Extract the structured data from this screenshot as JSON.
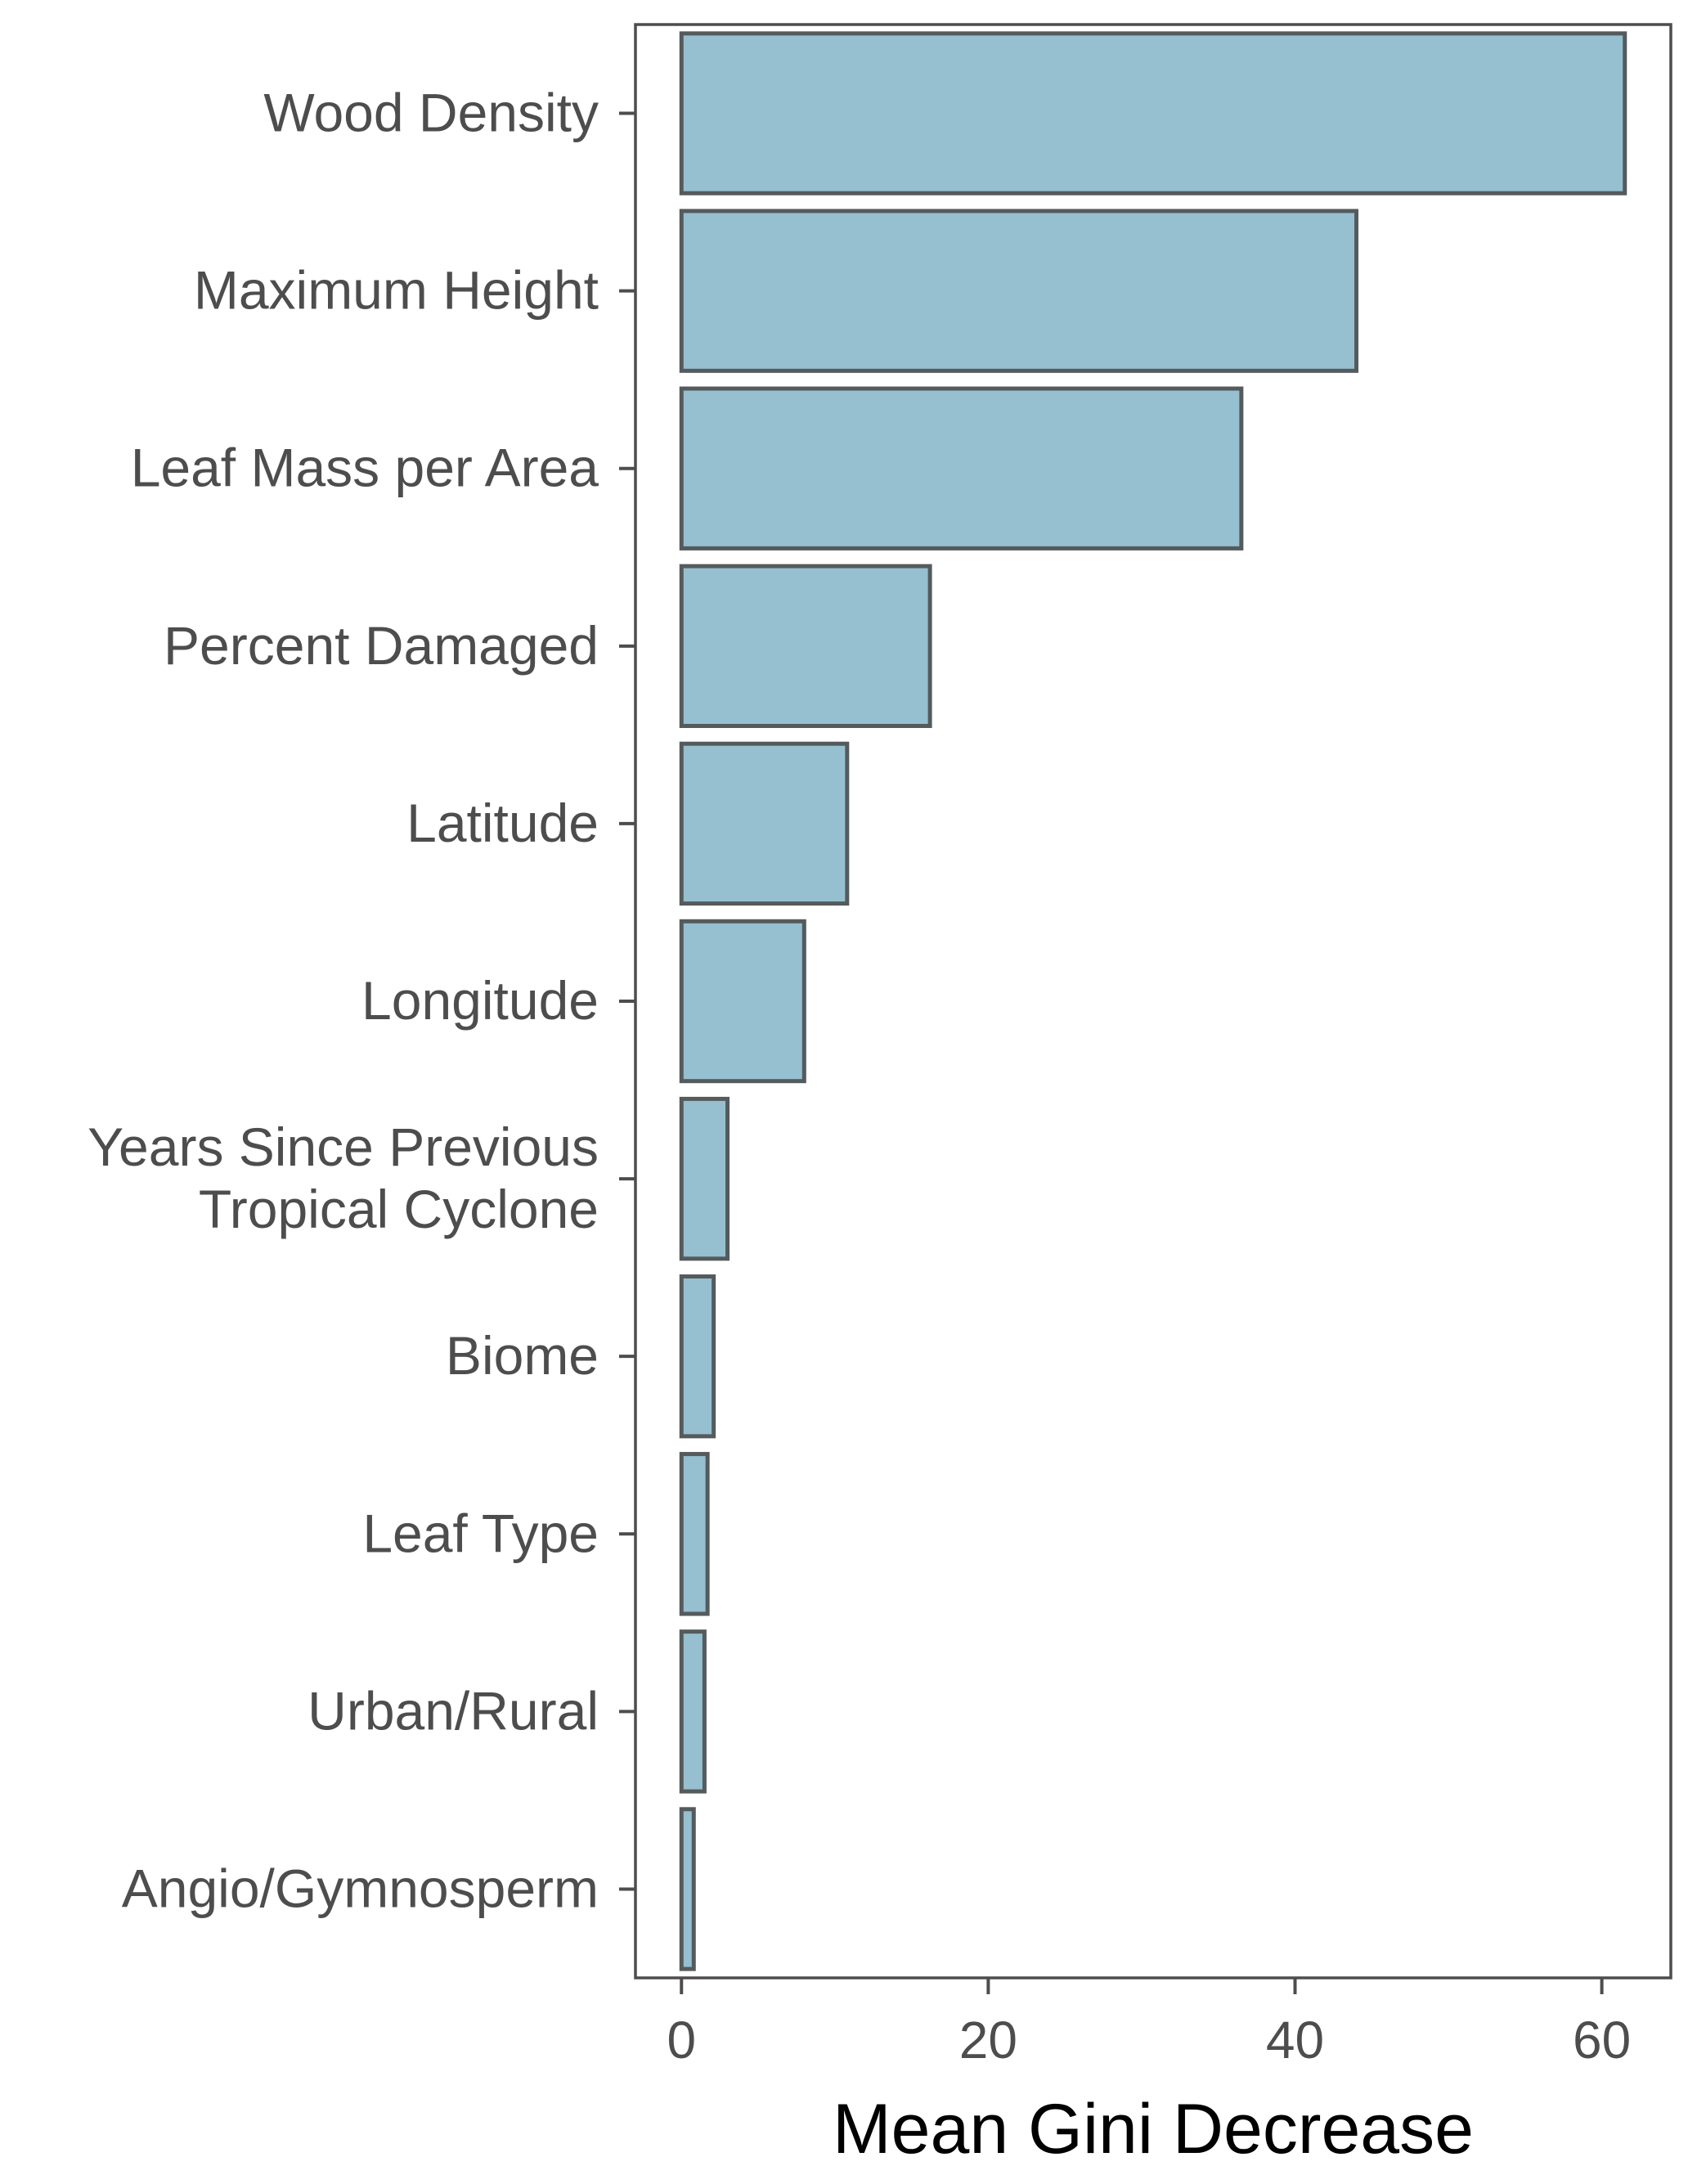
{
  "chart_data": {
    "type": "bar",
    "orientation": "horizontal",
    "categories": [
      "Wood Density",
      "Maximum Height",
      "Leaf Mass per Area",
      "Percent Damaged",
      "Latitude",
      "Longitude",
      "Years Since Previous Tropical Cyclone",
      "Biome",
      "Leaf Type",
      "Urban/Rural",
      "Angio/Gymnosperm"
    ],
    "category_label_lines": [
      [
        "Wood Density"
      ],
      [
        "Maximum Height"
      ],
      [
        "Leaf Mass per Area"
      ],
      [
        "Percent Damaged"
      ],
      [
        "Latitude"
      ],
      [
        "Longitude"
      ],
      [
        "Years Since Previous",
        "Tropical Cyclone"
      ],
      [
        "Biome"
      ],
      [
        "Leaf Type"
      ],
      [
        "Urban/Rural"
      ],
      [
        "Angio/Gymnosperm"
      ]
    ],
    "values": [
      61.5,
      44,
      36.5,
      16.2,
      10.8,
      8,
      3,
      2.1,
      1.7,
      1.5,
      0.8
    ],
    "title": "",
    "xlabel": "Mean Gini Decrease",
    "ylabel": "",
    "xlim": [
      -3,
      64.5
    ],
    "xticks": [
      0,
      20,
      40,
      60
    ],
    "xtick_labels": [
      "0",
      "20",
      "40",
      "60"
    ],
    "grid": false,
    "colors": {
      "bar_fill": "#96bfcf",
      "bar_stroke": "#555a5c",
      "panel_border": "#4d4d4d",
      "text": "#4d4d4d"
    }
  }
}
